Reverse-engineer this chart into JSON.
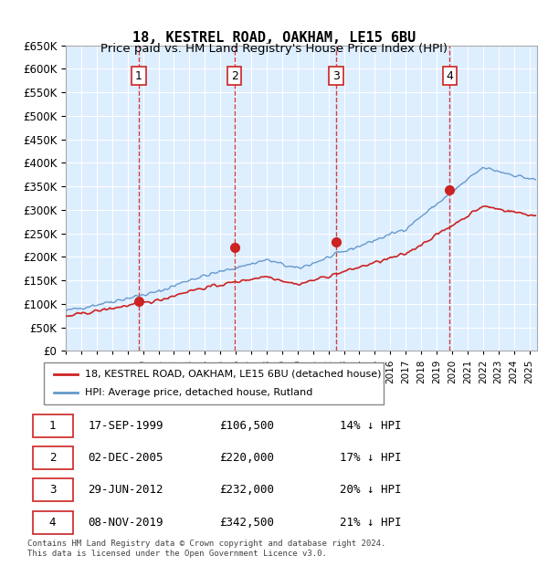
{
  "title": "18, KESTREL ROAD, OAKHAM, LE15 6BU",
  "subtitle": "Price paid vs. HM Land Registry's House Price Index (HPI)",
  "ylabel": "",
  "ylim": [
    0,
    650000
  ],
  "yticks": [
    0,
    50000,
    100000,
    150000,
    200000,
    250000,
    300000,
    350000,
    400000,
    450000,
    500000,
    550000,
    600000,
    650000
  ],
  "xlim_start": 1995.0,
  "xlim_end": 2025.5,
  "sale_dates": [
    1999.72,
    2005.92,
    2012.49,
    2019.85
  ],
  "sale_prices": [
    106500,
    220000,
    232000,
    342500
  ],
  "sale_labels": [
    "1",
    "2",
    "3",
    "4"
  ],
  "hpi_color": "#6699cc",
  "price_color": "#cc2222",
  "vline_color": "#cc2222",
  "background_color": "#ddeeff",
  "grid_color": "#ffffff",
  "legend_entries": [
    "18, KESTREL ROAD, OAKHAM, LE15 6BU (detached house)",
    "HPI: Average price, detached house, Rutland"
  ],
  "table_rows": [
    [
      "1",
      "17-SEP-1999",
      "£106,500",
      "14% ↓ HPI"
    ],
    [
      "2",
      "02-DEC-2005",
      "£220,000",
      "17% ↓ HPI"
    ],
    [
      "3",
      "29-JUN-2012",
      "£232,000",
      "20% ↓ HPI"
    ],
    [
      "4",
      "08-NOV-2019",
      "£342,500",
      "21% ↓ HPI"
    ]
  ],
  "footnote": "Contains HM Land Registry data © Crown copyright and database right 2024.\nThis data is licensed under the Open Government Licence v3.0."
}
